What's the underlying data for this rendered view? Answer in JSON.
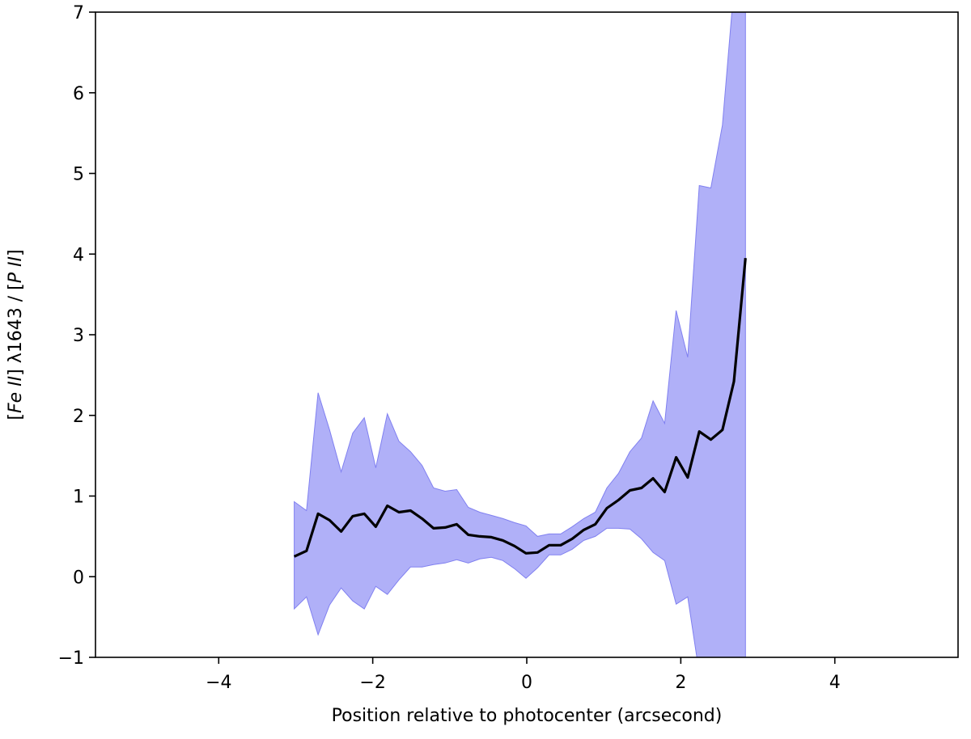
{
  "chart_data": {
    "type": "line",
    "title": "",
    "xlabel": "Position relative to photocenter (arcsecond)",
    "ylabel_parts": [
      {
        "text": "[",
        "italic": false
      },
      {
        "text": "Fe II",
        "italic": true
      },
      {
        "text": "] λ1643 / [",
        "italic": false
      },
      {
        "text": "P II",
        "italic": true
      },
      {
        "text": "]",
        "italic": false
      }
    ],
    "xlim": [
      -5.6,
      5.6
    ],
    "ylim": [
      -1,
      7
    ],
    "xticks": [
      -4,
      -2,
      0,
      2,
      4
    ],
    "xtick_labels": [
      "−4",
      "−2",
      "0",
      "2",
      "4"
    ],
    "yticks": [
      -1,
      0,
      1,
      2,
      3,
      4,
      5,
      6,
      7
    ],
    "ytick_labels": [
      "−1",
      "0",
      "1",
      "2",
      "3",
      "4",
      "5",
      "6",
      "7"
    ],
    "grid": false,
    "line_color": "#000000",
    "band_color": "#b0b0f8",
    "band_edge_color": "#8080f0",
    "x": [
      -3.02,
      -2.86,
      -2.71,
      -2.56,
      -2.41,
      -2.26,
      -2.11,
      -1.96,
      -1.81,
      -1.66,
      -1.51,
      -1.36,
      -1.21,
      -1.06,
      -0.91,
      -0.76,
      -0.61,
      -0.46,
      -0.31,
      -0.16,
      -0.01,
      0.14,
      0.29,
      0.44,
      0.59,
      0.74,
      0.89,
      1.04,
      1.19,
      1.34,
      1.49,
      1.64,
      1.79,
      1.94,
      2.09,
      2.24,
      2.39,
      2.54,
      2.69,
      2.84
    ],
    "series": [
      {
        "values": [
          0.25,
          0.32,
          0.78,
          0.7,
          0.56,
          0.75,
          0.78,
          0.62,
          0.88,
          0.8,
          0.82,
          0.72,
          0.6,
          0.61,
          0.65,
          0.52,
          0.5,
          0.49,
          0.45,
          0.38,
          0.29,
          0.3,
          0.39,
          0.39,
          0.47,
          0.58,
          0.65,
          0.85,
          0.95,
          1.07,
          1.1,
          1.22,
          1.05,
          1.48,
          1.23,
          1.8,
          1.7,
          1.82,
          2.42,
          3.95
        ]
      }
    ],
    "band_upper": [
      0.93,
      0.82,
      2.28,
      1.82,
      1.3,
      1.78,
      1.97,
      1.35,
      2.02,
      1.68,
      1.55,
      1.38,
      1.1,
      1.06,
      1.08,
      0.86,
      0.8,
      0.76,
      0.72,
      0.67,
      0.63,
      0.5,
      0.53,
      0.53,
      0.62,
      0.72,
      0.8,
      1.1,
      1.28,
      1.55,
      1.72,
      2.18,
      1.9,
      3.3,
      2.72,
      4.85,
      4.82,
      5.6,
      7.3,
      7.3
    ],
    "band_lower": [
      -0.4,
      -0.25,
      -0.72,
      -0.35,
      -0.14,
      -0.3,
      -0.4,
      -0.12,
      -0.22,
      -0.04,
      0.12,
      0.12,
      0.15,
      0.17,
      0.21,
      0.17,
      0.22,
      0.24,
      0.2,
      0.1,
      -0.02,
      0.11,
      0.27,
      0.27,
      0.34,
      0.45,
      0.5,
      0.6,
      0.6,
      0.59,
      0.47,
      0.3,
      0.2,
      -0.34,
      -0.25,
      -1.2,
      -1.2,
      -1.2,
      -1.2,
      -1.2
    ]
  }
}
